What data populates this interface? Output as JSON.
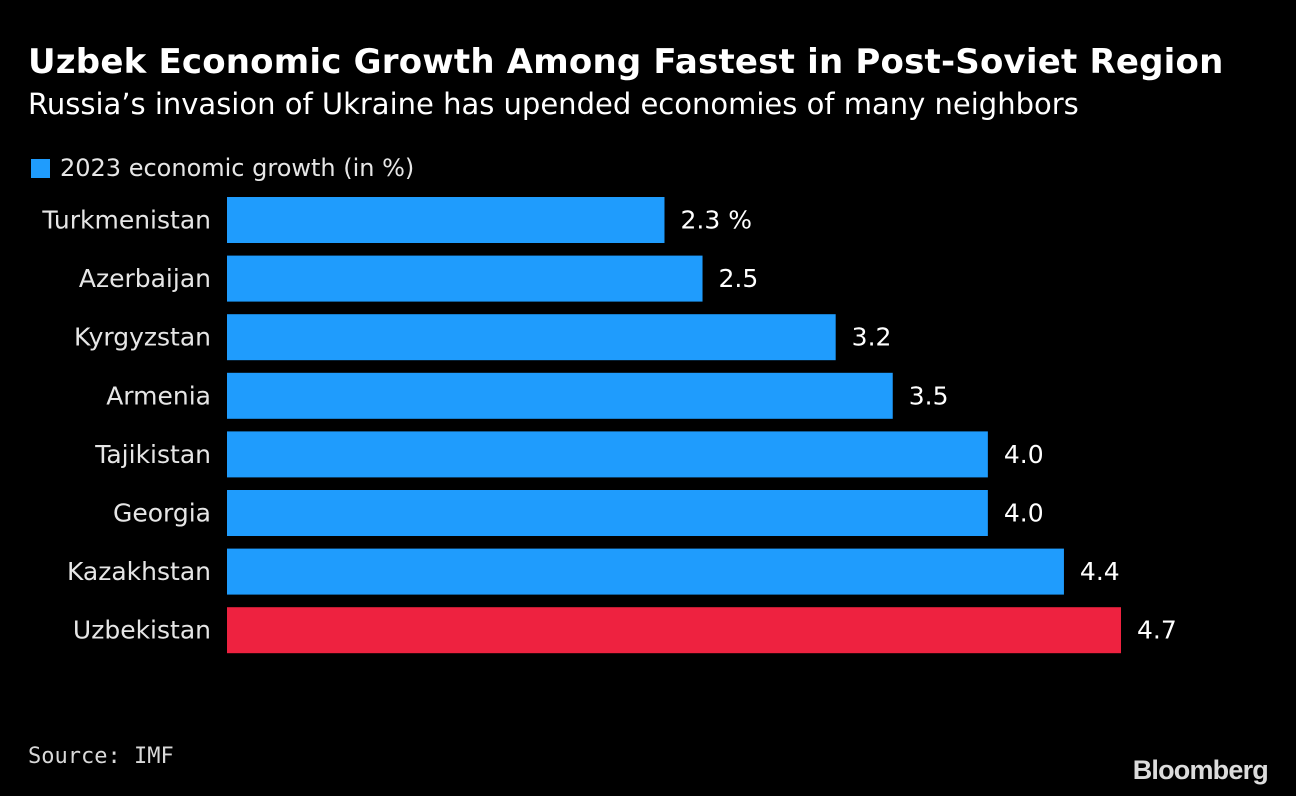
{
  "chart_data": {
    "type": "bar",
    "orientation": "horizontal",
    "title": "Uzbek Economic Growth Among Fastest in Post-Soviet Region",
    "subtitle": "Russia’s invasion of Ukraine has upended economies of many neighbors",
    "legend": [
      "2023 economic growth (in %)"
    ],
    "categories": [
      "Turkmenistan",
      "Azerbaijan",
      "Kyrgyzstan",
      "Armenia",
      "Tajikistan",
      "Georgia",
      "Kazakhstan",
      "Uzbekistan"
    ],
    "values": [
      2.3,
      2.5,
      3.2,
      3.5,
      4.0,
      4.0,
      4.4,
      4.7
    ],
    "data_labels": [
      "2.3 %",
      "2.5",
      "3.2",
      "3.5",
      "4.0",
      "4.0",
      "4.4",
      "4.7"
    ],
    "xlim": [
      0,
      4.7
    ],
    "unit": "%",
    "highlight_category": "Uzbekistan",
    "colors": {
      "default": "#1f9cfd",
      "highlight": "#ee2240",
      "text": "#ffffff",
      "category_text": "#e6e6e6"
    },
    "xlabel": "",
    "ylabel": "",
    "grid": false
  },
  "footer": {
    "source": "Source: IMF",
    "logo": "Bloomberg"
  }
}
